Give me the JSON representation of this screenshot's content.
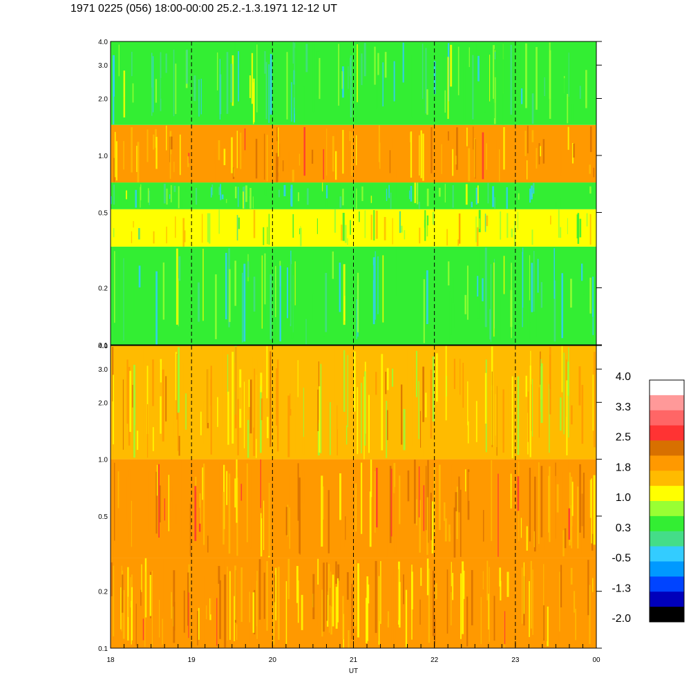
{
  "chart_data": {
    "type": "heatmap",
    "title": "1971 0225 (056) 18:00-00:00 25.2.-1.3.1971  12-12 UT",
    "xlabel": "UT",
    "x_ticks": [
      "18",
      "19",
      "20",
      "21",
      "22",
      "23",
      "00"
    ],
    "x_range": [
      18,
      24
    ],
    "y_scale": "log",
    "y_range": [
      0.1,
      4.0
    ],
    "y_ticks": [
      "0.1",
      "0.2",
      "0.5",
      "1.0",
      "2.0",
      "3.0",
      "4.0"
    ],
    "y_tick_values": [
      0.1,
      0.2,
      0.5,
      1.0,
      2.0,
      3.0,
      4.0
    ],
    "panels": [
      {
        "name": "upper",
        "bands": [
          {
            "y_from": 0.1,
            "y_to": 0.33,
            "level": 0.3
          },
          {
            "y_from": 0.33,
            "y_to": 0.52,
            "level": 1.0
          },
          {
            "y_from": 0.52,
            "y_to": 0.72,
            "level": 0.3
          },
          {
            "y_from": 0.72,
            "y_to": 1.45,
            "level": 1.8
          },
          {
            "y_from": 1.45,
            "y_to": 4.0,
            "level": 0.3
          }
        ]
      },
      {
        "name": "lower",
        "bands": [
          {
            "y_from": 0.1,
            "y_to": 0.3,
            "level": 1.8
          },
          {
            "y_from": 0.3,
            "y_to": 1.0,
            "level": 1.8
          },
          {
            "y_from": 1.0,
            "y_to": 4.0,
            "level": 1.5
          }
        ]
      }
    ],
    "colorbar": {
      "labels": [
        "4.0",
        "3.3",
        "2.5",
        "1.8",
        "1.0",
        "0.3",
        "-0.5",
        "-1.3",
        "-2.0"
      ],
      "colors": [
        "#ffffff",
        "#ff9999",
        "#ff6666",
        "#ff3333",
        "#d87000",
        "#ff9900",
        "#ffbb00",
        "#ffff00",
        "#99ff33",
        "#33ee33",
        "#44dd88",
        "#33ccff",
        "#0099ff",
        "#0044ff",
        "#0000bb",
        "#000000"
      ]
    },
    "grid": "dashed vertical lines at each hour",
    "legend": "colorbar right"
  }
}
